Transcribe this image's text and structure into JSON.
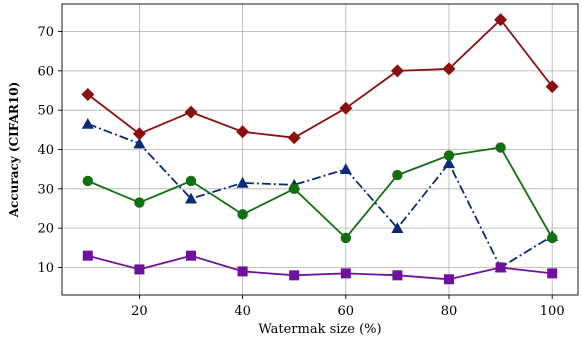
{
  "chart_data": {
    "type": "line",
    "xlabel": "Watermak size (%)",
    "ylabel": "Accuracy  (CIFAR10)",
    "xlim": [
      5,
      105
    ],
    "ylim": [
      3,
      77
    ],
    "xticks": [
      20,
      40,
      60,
      80,
      100
    ],
    "yticks": [
      10,
      20,
      30,
      40,
      50,
      60,
      70
    ],
    "grid": true,
    "x": [
      10,
      20,
      30,
      40,
      50,
      60,
      70,
      80,
      90,
      100
    ],
    "series": [
      {
        "color": "#8b1010",
        "line_style": "solid",
        "marker": "diamond",
        "values": [
          54,
          44,
          49.5,
          44.5,
          43,
          50.5,
          60,
          60.5,
          73,
          56
        ]
      },
      {
        "color": "#0a2a7a",
        "line_style": "dashdot",
        "marker": "triangle",
        "values": [
          46.5,
          41.5,
          27.5,
          31.5,
          31,
          35,
          20,
          36.5,
          10,
          18
        ]
      },
      {
        "color": "#127012",
        "line_style": "solid",
        "marker": "circle",
        "values": [
          32,
          26.5,
          32,
          23.5,
          30,
          17.5,
          33.5,
          38.5,
          40.5,
          17.5
        ]
      },
      {
        "color": "#7010a0",
        "line_style": "solid",
        "marker": "square",
        "values": [
          13,
          9.5,
          13,
          9,
          8,
          8.5,
          8,
          7,
          10,
          8.5
        ]
      }
    ]
  }
}
